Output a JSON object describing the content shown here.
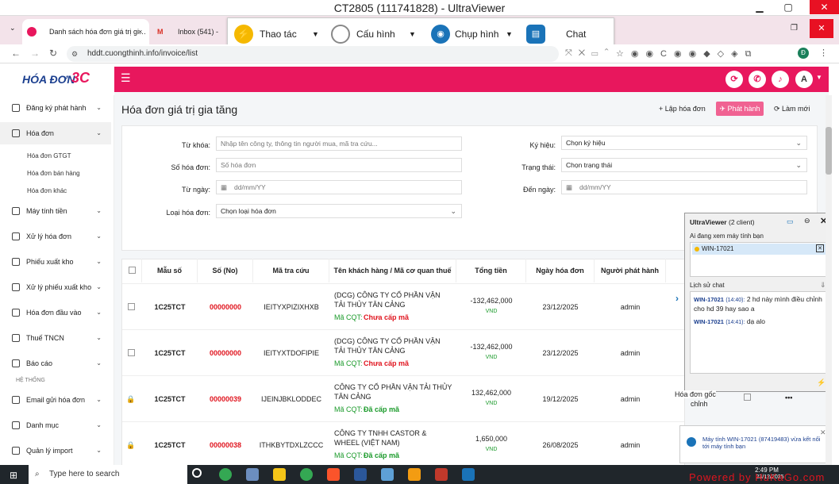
{
  "window": {
    "title": "CT2805 (111741828) - UltraViewer"
  },
  "browser": {
    "tabs": [
      {
        "label": "Danh sách hóa đơn giá trị gi…",
        "close": "×"
      },
      {
        "label": "Inbox (541) - dinhth",
        "close": "×"
      }
    ],
    "url": "hddt.cuongthinh.info/invoice/list",
    "profile_letter": "Đ"
  },
  "uv_toolbar": {
    "actions": "Thao tác",
    "config": "Cấu hình",
    "screenshot": "Chụp hình",
    "chat": "Chat"
  },
  "app": {
    "logo_text": "HÓA ĐƠN",
    "logo_badge": "3C",
    "avatar_letter": "A",
    "page_title": "Hóa đơn giá trị gia tăng",
    "buttons": {
      "create": "Lập hóa đơn",
      "issue": "Phát hành",
      "refresh": "Làm mới"
    }
  },
  "sidebar": {
    "items": [
      {
        "label": "Đăng ký phát hành"
      },
      {
        "label": "Hóa đơn"
      },
      {
        "label": "Máy tính tiền"
      },
      {
        "label": "Xử lý hóa đơn"
      },
      {
        "label": "Phiếu xuất kho"
      },
      {
        "label": "Xử lý phiếu xuất kho"
      },
      {
        "label": "Hóa đơn đầu vào"
      },
      {
        "label": "Thuế TNCN"
      },
      {
        "label": "Báo cáo"
      },
      {
        "label": "Email gửi hóa đơn"
      },
      {
        "label": "Danh mục"
      },
      {
        "label": "Quản lý import"
      }
    ],
    "sub_items": [
      "Hóa đơn GTGT",
      "Hóa đơn bán hàng",
      "Hóa đơn khác"
    ],
    "section": "HỆ THỐNG"
  },
  "filters": {
    "keyword_label": "Từ khóa:",
    "keyword_placeholder": "Nhập tên công ty, thông tin người mua, mã tra cứu...",
    "number_label": "Số hóa đơn:",
    "number_placeholder": "Số hóa đơn",
    "from_label": "Từ ngày:",
    "from_placeholder": "dd/mm/YY",
    "type_label": "Loại hóa đơn:",
    "type_value": "Chọn loại hóa đơn",
    "symbol_label": "Ký hiệu:",
    "symbol_value": "Chọn ký hiệu",
    "status_label": "Trạng thái:",
    "status_value": "Chọn trạng thái",
    "to_label": "Đến ngày:",
    "to_placeholder": "dd/mm/YY"
  },
  "table": {
    "headers": [
      "Mẫu số",
      "Số (No)",
      "Mã tra cứu",
      "Tên khách hàng / Mã cơ quan thuế",
      "Tổng tiền",
      "Ngày hóa đơn",
      "Người phát hành"
    ],
    "rows": [
      {
        "mau_so": "1C25TCT",
        "so": "00000000",
        "ma_tra_cuu": "IEITYXPIZIXHXB",
        "ten": "(DCG) CÔNG TY CỔ PHẦN VẬN TẢI THỦY TÂN CẢNG",
        "mcqt_label": "Mã CQT:",
        "mcqt": "Chưa cấp mã",
        "tong_tien": "-132,462,000",
        "currency": "VND",
        "ngay": "23/12/2025",
        "nguoi": "admin"
      },
      {
        "mau_so": "1C25TCT",
        "so": "00000000",
        "ma_tra_cuu": "IEITYXTDOFIPIE",
        "ten": "(DCG) CÔNG TY CỔ PHẦN VẬN TẢI THỦY TÂN CẢNG",
        "mcqt_label": "Mã CQT:",
        "mcqt": "Chưa cấp mã",
        "tong_tien": "-132,462,000",
        "currency": "VND",
        "ngay": "23/12/2025",
        "nguoi": "admin"
      },
      {
        "mau_so": "1C25TCT",
        "so": "00000039",
        "ma_tra_cuu": "IJEINJBKLODDEC",
        "ten": "CÔNG TY CỔ PHẦN VẬN TẢI THỦY TÂN CẢNG",
        "mcqt_label": "Mã CQT:",
        "mcqt": "Đã cấp mã",
        "tong_tien": "132,462,000",
        "currency": "VND",
        "ngay": "19/12/2025",
        "nguoi": "admin"
      },
      {
        "mau_so": "1C25TCT",
        "so": "00000038",
        "ma_tra_cuu": "ITHKBYTDXLZCCC",
        "ten": "CÔNG TY TNHH CASTOR & WHEEL (VIỆT NAM)",
        "mcqt_label": "Mã CQT:",
        "mcqt": "Đã cấp mã",
        "tong_tien": "1,650,000",
        "currency": "VND",
        "ngay": "26/08/2025",
        "nguoi": "admin"
      }
    ],
    "partial_status": "Hóa đơn gốc",
    "partial_status2": "chỉnh",
    "partial_m": "M",
    "more": "•••"
  },
  "uv_chat": {
    "title": "UltraViewer",
    "clients": "(2 client)",
    "viewing_label": "Ai đang xem máy tính bạn",
    "viewer": "WIN-17021",
    "history_label": "Lịch sử chat",
    "messages": [
      {
        "from": "WIN-17021",
        "time": "(14:40):",
        "text": "2 hd này mình điều chỉnh cho hd 39 hay sao a"
      },
      {
        "from": "WIN-17021",
        "time": "(14:41):",
        "text": "dạ alo"
      }
    ]
  },
  "notification": {
    "text": "Máy tính WIN-17021 (87419483) vừa kết nối tới máy tính bạn"
  },
  "taskbar": {
    "search": "Type here to search",
    "time": "2:49 PM",
    "date": "23/12/2025",
    "watermark": "Powered by HuKaGo.com"
  },
  "colors": {
    "brand": "#e8175d",
    "danger": "#e0151f",
    "success": "#1a9a2a"
  }
}
